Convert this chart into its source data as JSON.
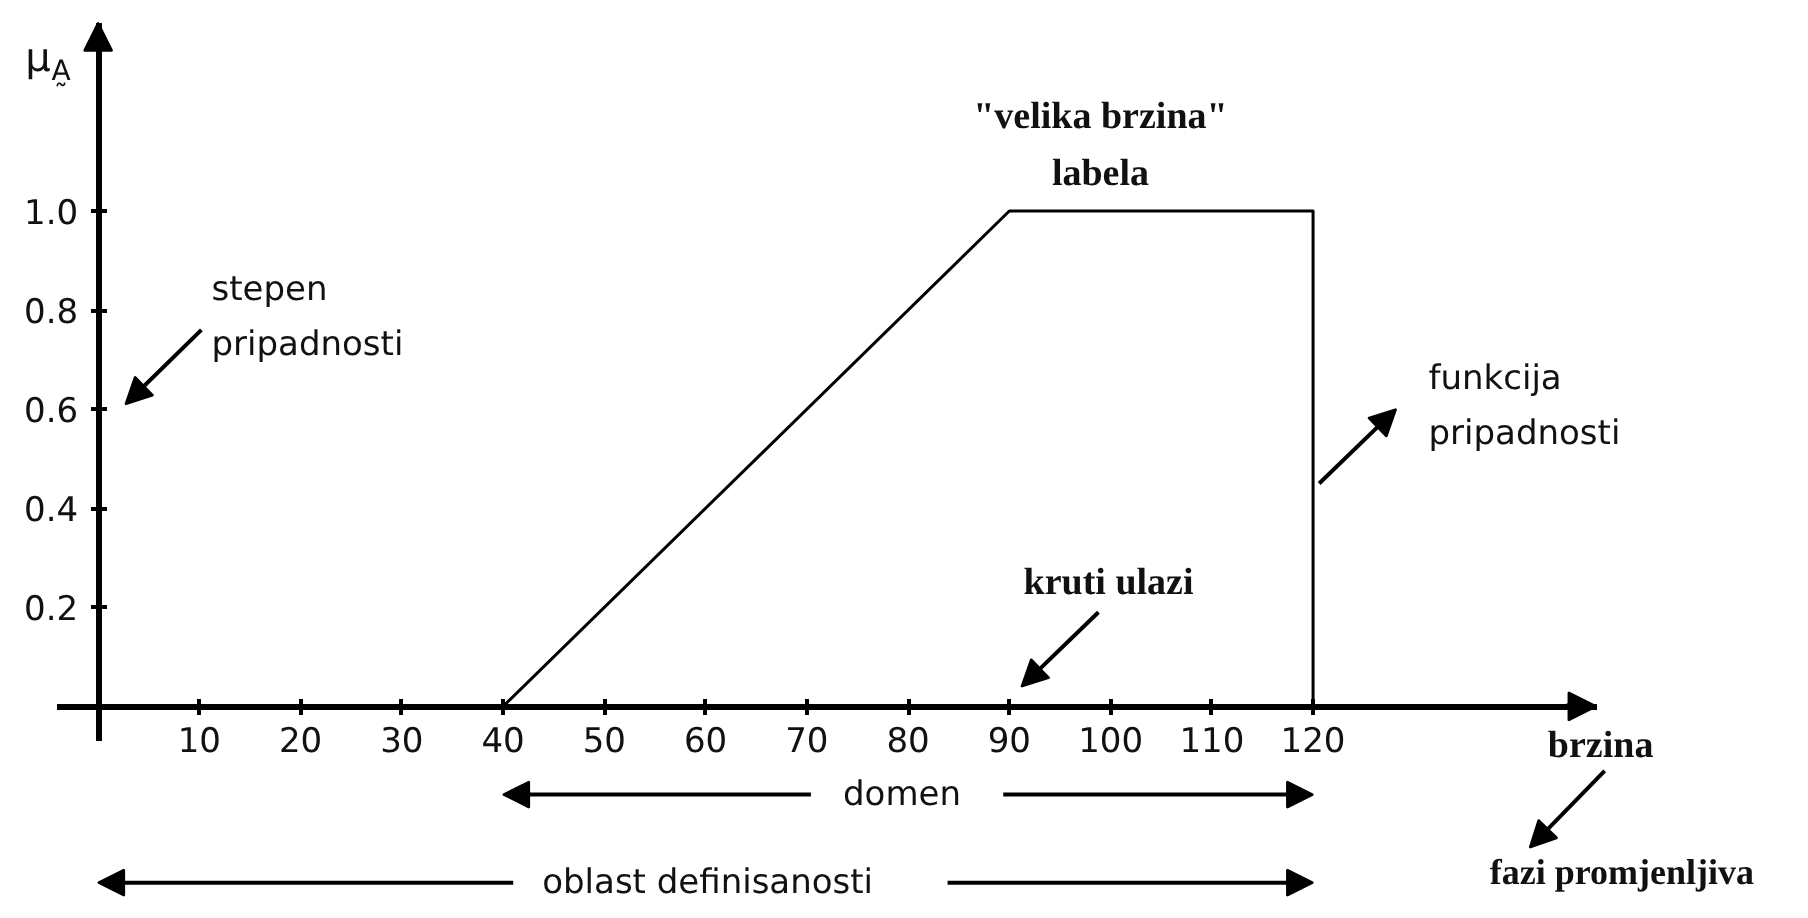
{
  "chart_data": {
    "type": "line",
    "xlabel": "brzina",
    "ylabel": "μ$_{A̰}$",
    "x": [
      40,
      90,
      120,
      120
    ],
    "series": [
      {
        "color": "#000000",
        "values": [
          0,
          1,
          1,
          0
        ]
      }
    ],
    "xlim": [
      -4,
      148
    ],
    "ylim": [
      -0.07,
      1.38
    ],
    "xticks": [
      10,
      20,
      30,
      40,
      50,
      60,
      70,
      80,
      90,
      100,
      110,
      120
    ],
    "yticks": [
      0.2,
      0.4,
      0.6,
      0.8,
      {
        "value": 1,
        "label": "1.0"
      }
    ],
    "grid": false,
    "marker": "none",
    "line_style": "solid",
    "annotations": [
      "\"velika brzina\"\nlabela",
      "stepen\npripadnosti",
      "funkcija\npripadnosti",
      "kruti ulazi",
      "domen",
      "oblast definisanosti",
      "fazi promjenljiva"
    ]
  }
}
